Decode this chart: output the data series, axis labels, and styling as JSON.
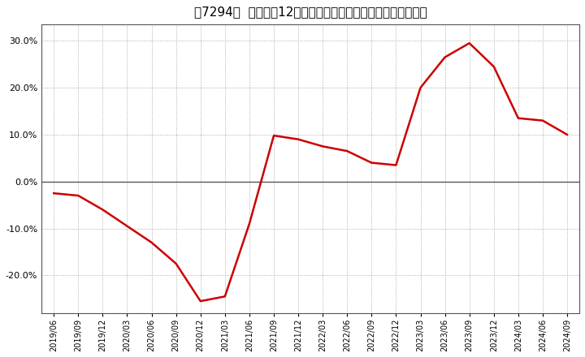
{
  "title": "［7294］  売上高の12か月移動合計の対前年同期増減率の推移",
  "line_color": "#cc0000",
  "background_color": "#ffffff",
  "plot_background_color": "#ffffff",
  "grid_color": "#999999",
  "zero_line_color": "#555555",
  "spine_color": "#555555",
  "ylim": [
    -0.28,
    0.335
  ],
  "yticks": [
    -0.2,
    -0.1,
    0.0,
    0.1,
    0.2,
    0.3
  ],
  "dates": [
    "2019/06",
    "2019/09",
    "2019/12",
    "2020/03",
    "2020/06",
    "2020/09",
    "2020/12",
    "2021/03",
    "2021/06",
    "2021/09",
    "2021/12",
    "2022/03",
    "2022/06",
    "2022/09",
    "2022/12",
    "2023/03",
    "2023/06",
    "2023/09",
    "2023/12",
    "2024/03",
    "2024/06",
    "2024/09"
  ],
  "values": [
    -0.025,
    -0.03,
    -0.06,
    -0.095,
    -0.13,
    -0.175,
    -0.255,
    -0.245,
    -0.09,
    0.098,
    0.09,
    0.075,
    0.065,
    0.04,
    0.035,
    0.2,
    0.265,
    0.295,
    0.245,
    0.135,
    0.13,
    0.1
  ]
}
